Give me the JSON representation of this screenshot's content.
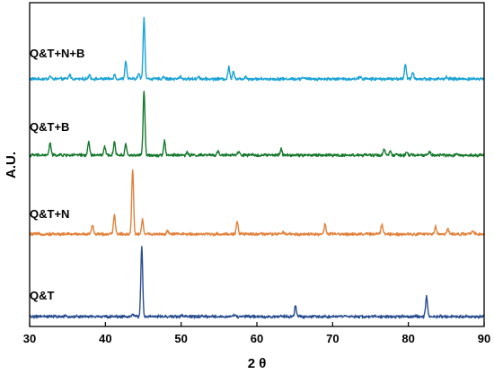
{
  "chart_data": {
    "type": "line",
    "xlabel": "2 θ",
    "ylabel": "A.U.",
    "xlim": [
      30,
      90
    ],
    "x_ticks": [
      30,
      40,
      50,
      60,
      70,
      80,
      90
    ],
    "grid": false,
    "y_ticks_shown": false,
    "series": [
      {
        "name": "Q&T+N+B",
        "color": "#1ba3d6",
        "peaks": [
          {
            "x": 32.7,
            "y": 3
          },
          {
            "x": 35.3,
            "y": 5
          },
          {
            "x": 37.9,
            "y": 5
          },
          {
            "x": 41.2,
            "y": 5
          },
          {
            "x": 42.7,
            "y": 20
          },
          {
            "x": 44.4,
            "y": 6
          },
          {
            "x": 45.1,
            "y": 68
          },
          {
            "x": 47.7,
            "y": 3
          },
          {
            "x": 49.9,
            "y": 3
          },
          {
            "x": 52.3,
            "y": 3
          },
          {
            "x": 56.3,
            "y": 13
          },
          {
            "x": 56.9,
            "y": 9
          },
          {
            "x": 58.5,
            "y": 3
          },
          {
            "x": 66.1,
            "y": 2
          },
          {
            "x": 73.6,
            "y": 3
          },
          {
            "x": 79.6,
            "y": 17
          },
          {
            "x": 80.6,
            "y": 7
          },
          {
            "x": 85.0,
            "y": 2
          }
        ]
      },
      {
        "name": "Q&T+B",
        "color": "#16782c",
        "peaks": [
          {
            "x": 32.7,
            "y": 14
          },
          {
            "x": 37.8,
            "y": 15
          },
          {
            "x": 39.9,
            "y": 9
          },
          {
            "x": 41.2,
            "y": 15
          },
          {
            "x": 42.7,
            "y": 12
          },
          {
            "x": 45.1,
            "y": 72
          },
          {
            "x": 47.8,
            "y": 16
          },
          {
            "x": 50.8,
            "y": 3
          },
          {
            "x": 54.9,
            "y": 5
          },
          {
            "x": 57.6,
            "y": 4
          },
          {
            "x": 63.2,
            "y": 7
          },
          {
            "x": 76.8,
            "y": 7
          },
          {
            "x": 77.6,
            "y": 5
          },
          {
            "x": 79.8,
            "y": 3
          },
          {
            "x": 82.8,
            "y": 4
          }
        ]
      },
      {
        "name": "Q&T+N",
        "color": "#e2823c",
        "peaks": [
          {
            "x": 38.3,
            "y": 10
          },
          {
            "x": 41.2,
            "y": 22
          },
          {
            "x": 43.6,
            "y": 73
          },
          {
            "x": 44.9,
            "y": 16
          },
          {
            "x": 48.2,
            "y": 3
          },
          {
            "x": 57.4,
            "y": 14
          },
          {
            "x": 63.4,
            "y": 2
          },
          {
            "x": 69.0,
            "y": 11
          },
          {
            "x": 76.5,
            "y": 11
          },
          {
            "x": 83.6,
            "y": 9
          },
          {
            "x": 85.2,
            "y": 6
          },
          {
            "x": 88.5,
            "y": 3
          }
        ]
      },
      {
        "name": "Q&T",
        "color": "#2a4d8f",
        "peaks": [
          {
            "x": 44.8,
            "y": 78
          },
          {
            "x": 43.6,
            "y": 3
          },
          {
            "x": 65.1,
            "y": 12
          },
          {
            "x": 82.4,
            "y": 24
          },
          {
            "x": 50.1,
            "y": 2
          },
          {
            "x": 57.0,
            "y": 2
          }
        ]
      }
    ]
  }
}
